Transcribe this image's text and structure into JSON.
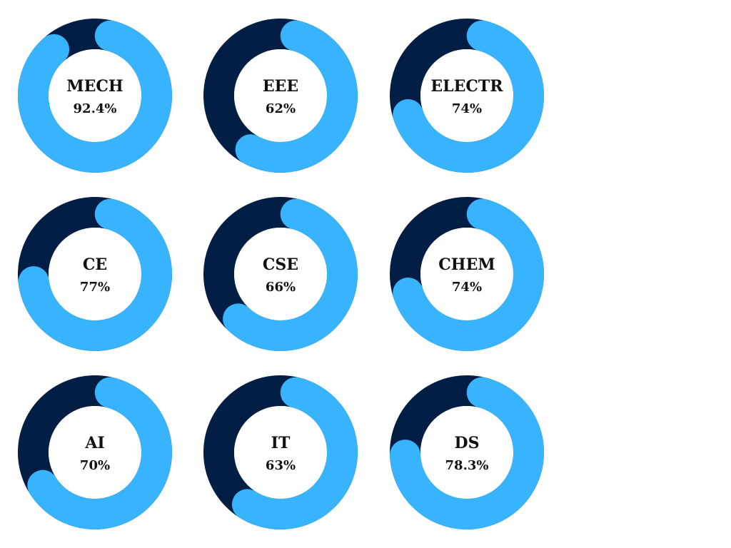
{
  "colors": {
    "track": "#031e44",
    "progress": "#38b3fd",
    "background": "#ffffff",
    "text": "#111111"
  },
  "chart_data": {
    "type": "donut",
    "max": 100,
    "items": [
      {
        "name": "MECH",
        "value": 92.4,
        "label": "92.4%"
      },
      {
        "name": "EEE",
        "value": 62,
        "label": "62%"
      },
      {
        "name": "ELECTR",
        "value": 74,
        "label": "74%"
      },
      {
        "name": "CE",
        "value": 77,
        "label": "77%"
      },
      {
        "name": "CSE",
        "value": 66,
        "label": "66%"
      },
      {
        "name": "CHEM",
        "value": 74,
        "label": "74%"
      },
      {
        "name": "AI",
        "value": 70,
        "label": "70%"
      },
      {
        "name": "IT",
        "value": 63,
        "label": "63%"
      },
      {
        "name": "DS",
        "value": 78.3,
        "label": "78.3%"
      }
    ]
  }
}
